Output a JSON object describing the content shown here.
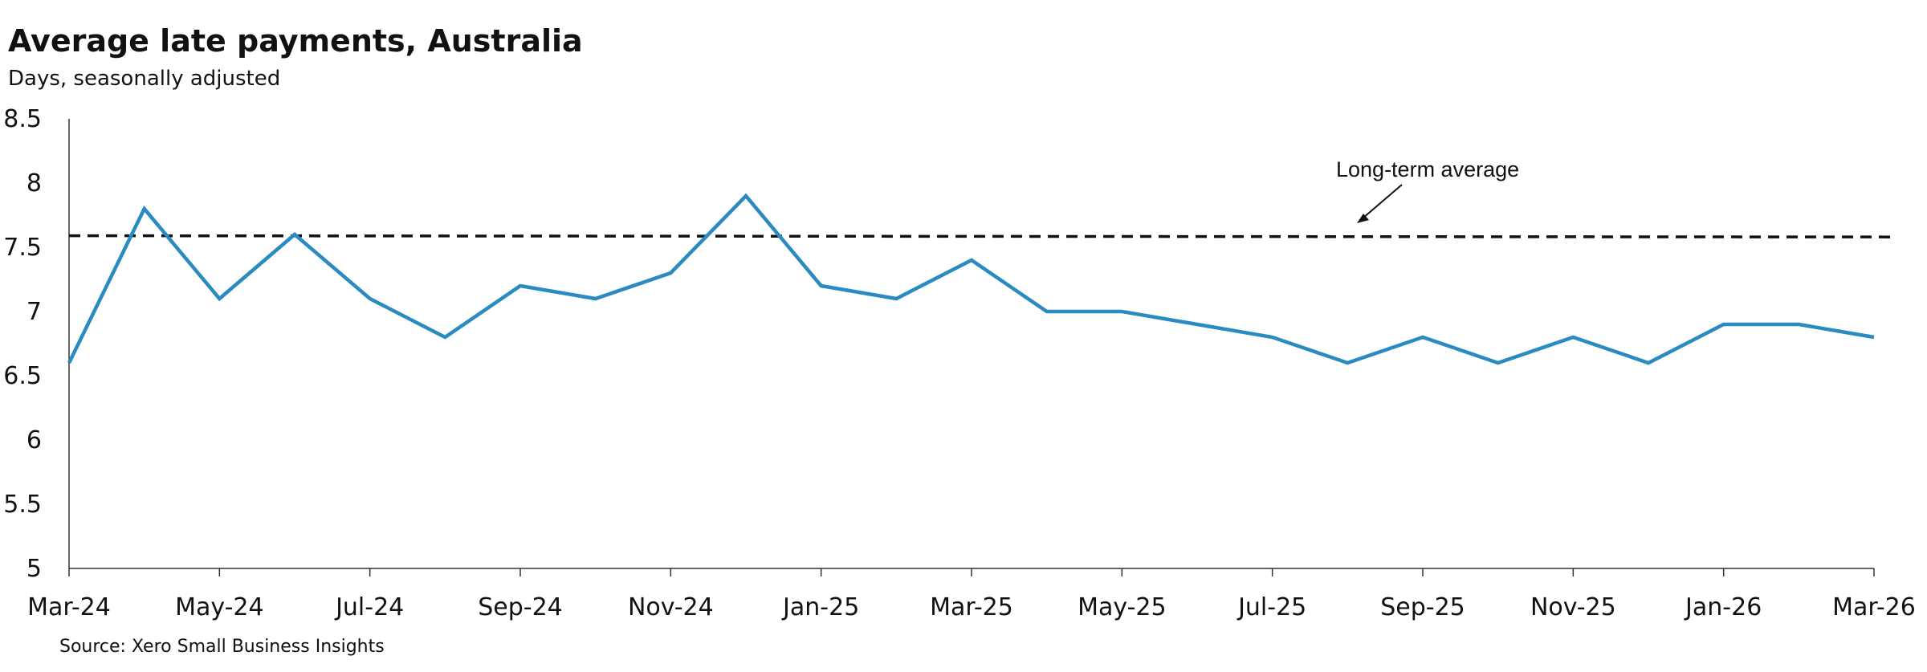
{
  "chart_data": {
    "type": "line",
    "title": "Average late payments, Australia",
    "subtitle": "Days, seasonally adjusted",
    "source": "Source: Xero Small Business Insights",
    "x": [
      "Mar-24",
      "Apr-24",
      "May-24",
      "Jun-24",
      "Jul-24",
      "Aug-24",
      "Sep-24",
      "Oct-24",
      "Nov-24",
      "Dec-24",
      "Jan-25",
      "Feb-25",
      "Mar-25",
      "Apr-25",
      "May-25",
      "Jun-25",
      "Jul-25",
      "Aug-25",
      "Sep-25",
      "Oct-25",
      "Nov-25",
      "Dec-25",
      "Jan-26",
      "Feb-26",
      "Mar-26"
    ],
    "x_tick_labels": [
      "Mar-24",
      "May-24",
      "Jul-24",
      "Sep-24",
      "Nov-24",
      "Jan-25",
      "Mar-25",
      "May-25",
      "Jul-25",
      "Sep-25",
      "Nov-25",
      "Jan-26",
      "Mar-26"
    ],
    "series": [
      {
        "values": [
          6.6,
          7.8,
          7.1,
          7.6,
          7.1,
          6.8,
          7.2,
          7.1,
          7.3,
          7.9,
          7.2,
          7.1,
          7.4,
          7.0,
          7.0,
          6.9,
          6.8,
          6.6,
          6.8,
          6.6,
          6.8,
          6.6,
          6.9,
          6.9,
          6.8
        ],
        "color": "#2a8bc0"
      }
    ],
    "reference_line": {
      "label": "Long-term average",
      "value": 7.59,
      "value_end": 7.58,
      "style": "dashed",
      "color": "#111111"
    },
    "ylim": [
      5,
      8.5
    ],
    "y_ticks": [
      "5",
      "5.5",
      "6",
      "6.5",
      "7",
      "7.5",
      "8",
      "8.5"
    ],
    "grid": false,
    "legend": "none"
  }
}
